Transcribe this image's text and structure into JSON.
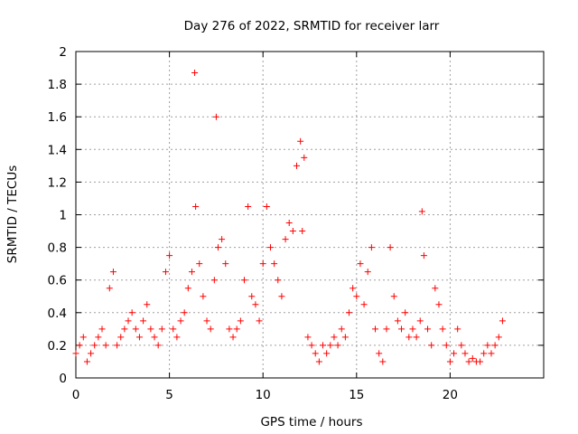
{
  "chart_data": {
    "type": "scatter",
    "title": "Day 276 of 2022, SRMTID for receiver larr",
    "xlabel": "GPS time / hours",
    "ylabel": "SRMTID / TECUs",
    "xlim": [
      0,
      25
    ],
    "ylim": [
      0,
      2
    ],
    "xticks": [
      0,
      5,
      10,
      15,
      20
    ],
    "xtick_labels": [
      "0",
      "5",
      "10",
      "15",
      "20"
    ],
    "yticks": [
      0,
      0.2,
      0.4,
      0.6,
      0.8,
      1,
      1.2,
      1.4,
      1.6,
      1.8,
      2
    ],
    "ytick_labels": [
      "0",
      "0.2",
      "0.4",
      "0.6",
      "0.8",
      "1",
      "1.2",
      "1.4",
      "1.6",
      "1.8",
      "2"
    ],
    "grid": true,
    "marker": "+",
    "color": "#ff0000",
    "series": [
      {
        "name": "larr",
        "x": [
          0.0,
          0.2,
          0.4,
          0.6,
          0.8,
          1.0,
          1.2,
          1.4,
          1.6,
          1.8,
          2.0,
          2.2,
          2.4,
          2.6,
          2.8,
          3.0,
          3.2,
          3.4,
          3.6,
          3.8,
          4.0,
          4.2,
          4.4,
          4.6,
          4.8,
          5.0,
          5.2,
          5.4,
          5.6,
          5.8,
          6.0,
          6.2,
          6.35,
          6.4,
          6.6,
          6.8,
          7.0,
          7.2,
          7.4,
          7.5,
          7.6,
          7.8,
          8.0,
          8.2,
          8.4,
          8.6,
          8.8,
          9.0,
          9.2,
          9.4,
          9.6,
          9.8,
          10.0,
          10.2,
          10.4,
          10.6,
          10.8,
          11.0,
          11.2,
          11.4,
          11.6,
          11.8,
          12.0,
          12.1,
          12.2,
          12.4,
          12.6,
          12.8,
          13.0,
          13.2,
          13.4,
          13.6,
          13.8,
          14.0,
          14.2,
          14.4,
          14.6,
          14.8,
          15.0,
          15.2,
          15.4,
          15.6,
          15.8,
          16.0,
          16.2,
          16.4,
          16.6,
          16.8,
          17.0,
          17.2,
          17.4,
          17.6,
          17.8,
          18.0,
          18.2,
          18.4,
          18.5,
          18.6,
          18.8,
          19.0,
          19.2,
          19.4,
          19.6,
          19.8,
          20.0,
          20.2,
          20.4,
          20.6,
          20.8,
          21.0,
          21.2,
          21.4,
          21.6,
          21.8,
          22.0,
          22.2,
          22.4,
          22.6,
          22.8
        ],
        "y": [
          0.15,
          0.2,
          0.25,
          0.1,
          0.15,
          0.2,
          0.25,
          0.3,
          0.2,
          0.55,
          0.65,
          0.2,
          0.25,
          0.3,
          0.35,
          0.4,
          0.3,
          0.25,
          0.35,
          0.45,
          0.3,
          0.25,
          0.2,
          0.3,
          0.65,
          0.75,
          0.3,
          0.25,
          0.35,
          0.4,
          0.55,
          0.65,
          1.87,
          1.05,
          0.7,
          0.5,
          0.35,
          0.3,
          0.6,
          1.6,
          0.8,
          0.85,
          0.7,
          0.3,
          0.25,
          0.3,
          0.35,
          0.6,
          1.05,
          0.5,
          0.45,
          0.35,
          0.7,
          1.05,
          0.8,
          0.7,
          0.6,
          0.5,
          0.85,
          0.95,
          0.9,
          1.3,
          1.45,
          0.9,
          1.35,
          0.25,
          0.2,
          0.15,
          0.1,
          0.2,
          0.15,
          0.2,
          0.25,
          0.2,
          0.3,
          0.25,
          0.4,
          0.55,
          0.5,
          0.7,
          0.45,
          0.65,
          0.8,
          0.3,
          0.15,
          0.1,
          0.3,
          0.8,
          0.5,
          0.35,
          0.3,
          0.4,
          0.25,
          0.3,
          0.25,
          0.35,
          1.02,
          0.75,
          0.3,
          0.2,
          0.55,
          0.45,
          0.3,
          0.2,
          0.1,
          0.15,
          0.3,
          0.2,
          0.15,
          0.1,
          0.12,
          0.1,
          0.1,
          0.15,
          0.2,
          0.15,
          0.2,
          0.25,
          0.35
        ]
      }
    ]
  }
}
